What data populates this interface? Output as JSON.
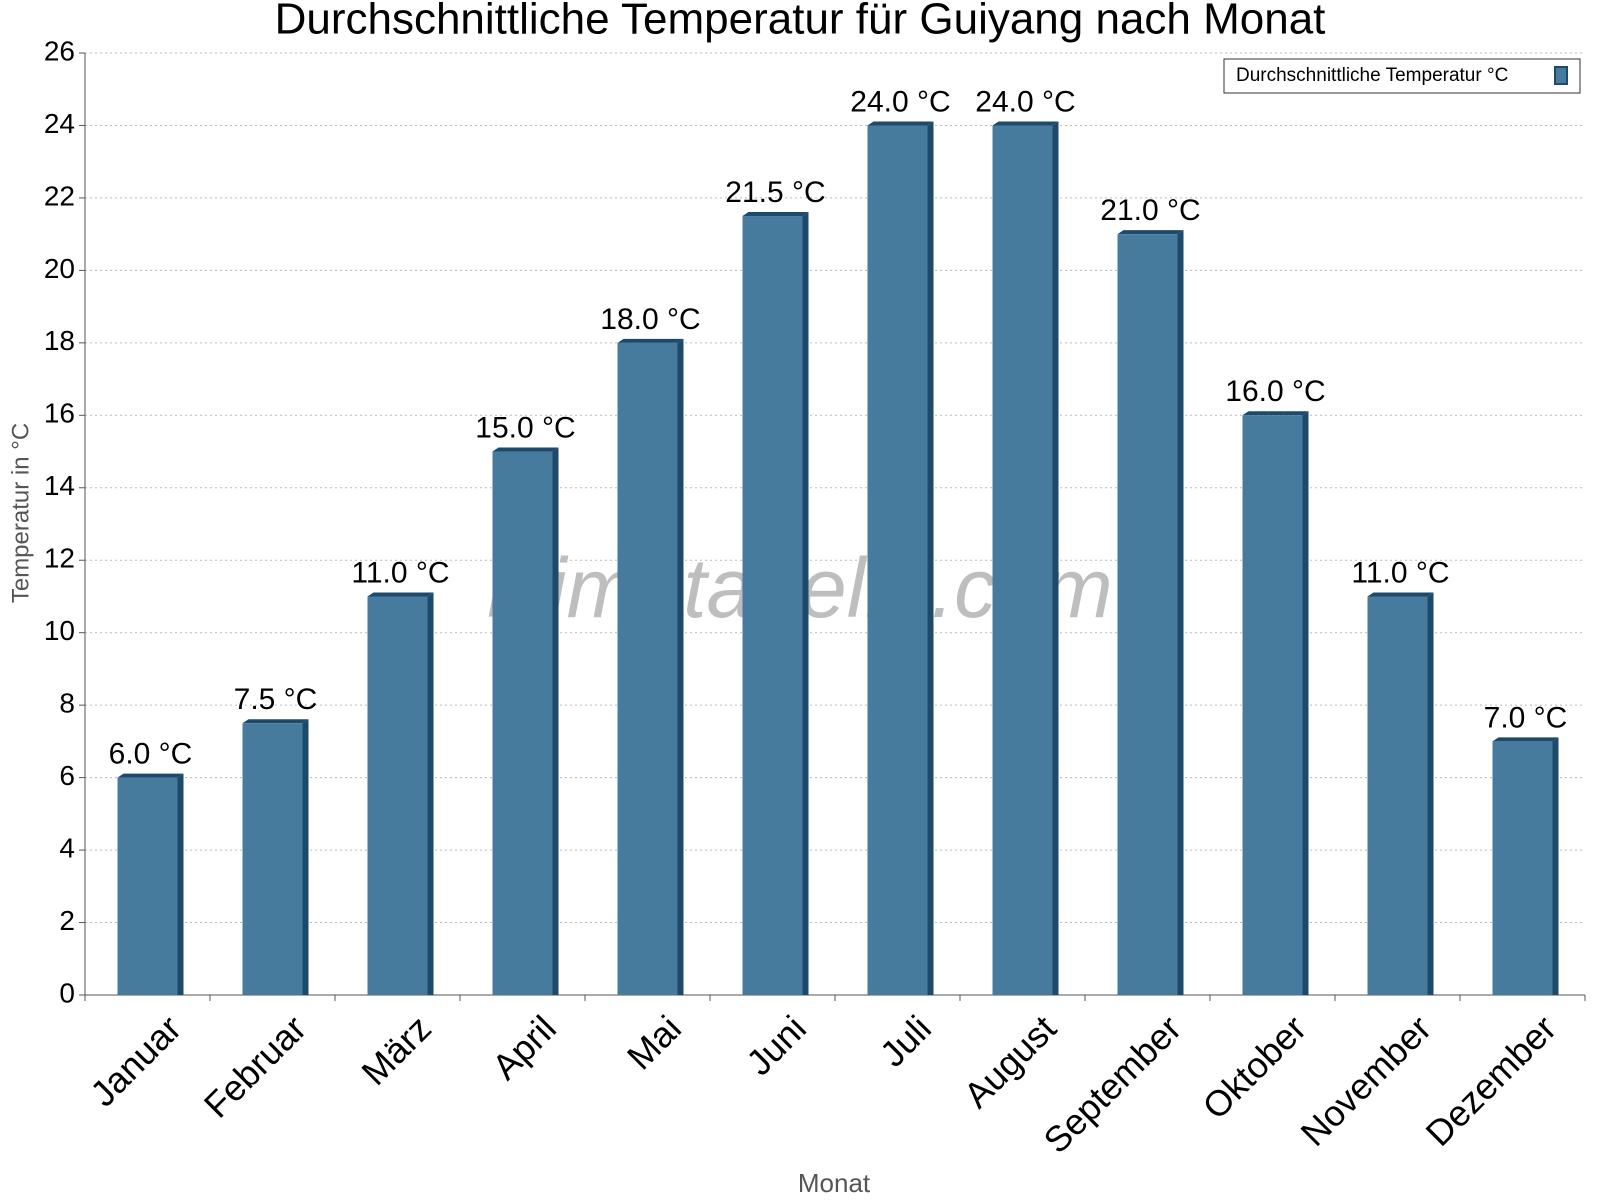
{
  "chart_data": {
    "type": "bar",
    "title": "Durchschnittliche Temperatur für Guiyang nach Monat",
    "x_label": "Monat",
    "y_label": "Temperatur in °C",
    "watermark": "klimatabelle.com",
    "categories": [
      "Januar",
      "Februar",
      "März",
      "April",
      "Mai",
      "Juni",
      "Juli",
      "August",
      "September",
      "Oktober",
      "November",
      "Dezember"
    ],
    "series": [
      {
        "name": "Durchschnittliche Temperatur °C",
        "color": "#467b9e",
        "values": [
          6.0,
          7.5,
          11.0,
          15.0,
          18.0,
          21.5,
          24.0,
          24.0,
          21.0,
          16.0,
          11.0,
          7.0
        ],
        "value_labels": [
          "6.0 °C",
          "7.5 °C",
          "11.0 °C",
          "15.0 °C",
          "18.0 °C",
          "21.5 °C",
          "24.0 °C",
          "24.0 °C",
          "21.0 °C",
          "16.0 °C",
          "11.0 °C",
          "7.0 °C"
        ]
      }
    ],
    "ylim": [
      0,
      26
    ],
    "yticks": [
      0,
      2,
      4,
      6,
      8,
      10,
      12,
      14,
      16,
      18,
      20,
      22,
      24,
      26
    ],
    "grid": true,
    "legend": "top-right"
  }
}
